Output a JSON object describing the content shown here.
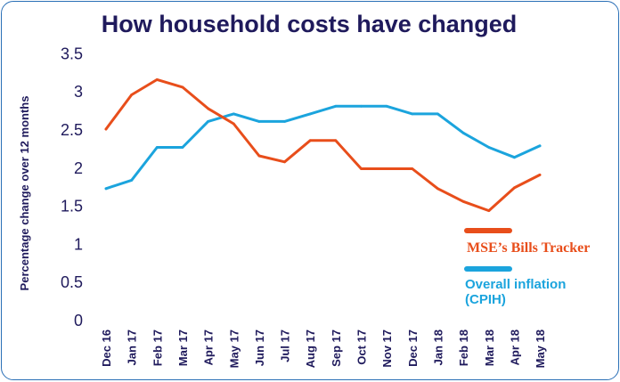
{
  "chart_data": {
    "type": "line",
    "title": "How household costs have changed",
    "xlabel": "",
    "ylabel": "Percentage change over 12 months",
    "ylim": [
      0,
      3.5
    ],
    "yticks": [
      "0",
      "0.5",
      "1",
      "1.5",
      "2",
      "2.5",
      "3",
      "3.5"
    ],
    "ytick_values": [
      0,
      0.5,
      1,
      1.5,
      2,
      2.5,
      3,
      3.5
    ],
    "categories": [
      "Dec 16",
      "Jan 17",
      "Feb 17",
      "Mar 17",
      "Apr 17",
      "May 17",
      "Jun 17",
      "Jul 17",
      "Aug 17",
      "Sep 17",
      "Oct 17",
      "Nov 17",
      "Dec 17",
      "Jan 18",
      "Feb 18",
      "Mar 18",
      "Apr 18",
      "May 18"
    ],
    "legend_position": "right",
    "series": [
      {
        "name": "MSE's Bills Tracker",
        "label": "MSE’s Bills Tracker",
        "color": "#e84e1b",
        "values": [
          2.5,
          2.95,
          3.15,
          3.05,
          2.77,
          2.57,
          2.15,
          2.07,
          2.35,
          2.35,
          1.98,
          1.98,
          1.98,
          1.72,
          1.55,
          1.43,
          1.73,
          1.9
        ]
      },
      {
        "name": "Overall inflation (CPIH)",
        "label_line1": "Overall inflation",
        "label_line2": "(CPIH)",
        "color": "#1ba4dd",
        "values": [
          1.72,
          1.83,
          2.26,
          2.26,
          2.6,
          2.7,
          2.6,
          2.6,
          2.7,
          2.8,
          2.8,
          2.8,
          2.7,
          2.7,
          2.45,
          2.26,
          2.13,
          2.28
        ]
      }
    ]
  }
}
